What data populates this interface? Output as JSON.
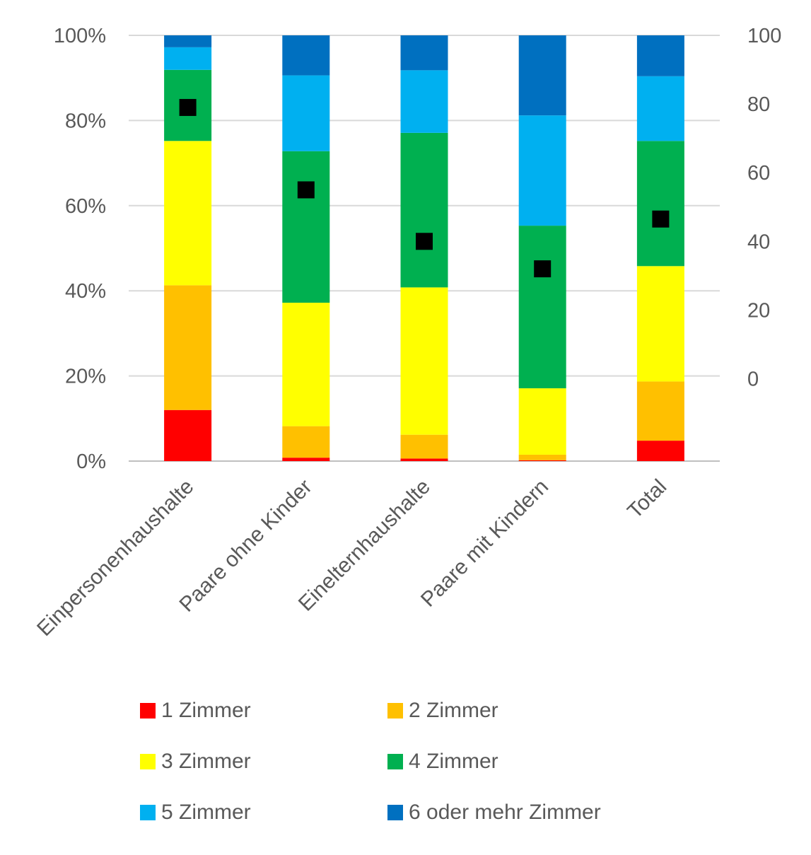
{
  "chart_data": {
    "type": "bar",
    "stacked": true,
    "percent": true,
    "title": "",
    "xlabel": "",
    "ylabel": "",
    "ylim": [
      0,
      100
    ],
    "y_ticks": [
      "0%",
      "20%",
      "40%",
      "60%",
      "80%",
      "100%"
    ],
    "y2_ticks": [
      "0",
      "20",
      "40",
      "60",
      "80",
      "100"
    ],
    "y2lim": [
      -24,
      100
    ],
    "grid": true,
    "legend_position": "bottom",
    "categories": [
      "Einpersonenhaushalte",
      "Paare ohne Kinder",
      "Einelternhaushalte",
      "Paare mit Kindern",
      "Total"
    ],
    "series": [
      {
        "name": "1 Zimmer",
        "color": "#ff0000",
        "values": [
          12,
          0.8,
          0.6,
          0.2,
          4.8
        ]
      },
      {
        "name": "2 Zimmer",
        "color": "#ffc000",
        "values": [
          29.3,
          7.4,
          5.6,
          1.3,
          13.9
        ]
      },
      {
        "name": "3 Zimmer",
        "color": "#ffff00",
        "values": [
          33.9,
          29,
          34.6,
          15.6,
          27.1
        ]
      },
      {
        "name": "4 Zimmer",
        "color": "#00b050",
        "values": [
          16.7,
          35.6,
          36.3,
          38.2,
          29.4
        ]
      },
      {
        "name": "5 Zimmer",
        "color": "#00b0f0",
        "values": [
          5.3,
          17.8,
          14.7,
          25.9,
          15.2
        ]
      },
      {
        "name": "6 oder mehr Zimmer",
        "color": "#0070c0",
        "values": [
          2.8,
          9.4,
          8.2,
          18.8,
          9.6
        ]
      }
    ],
    "markers": {
      "color": "#000000",
      "axis": "secondary",
      "values": [
        79,
        55,
        40,
        32,
        46.5
      ]
    }
  }
}
